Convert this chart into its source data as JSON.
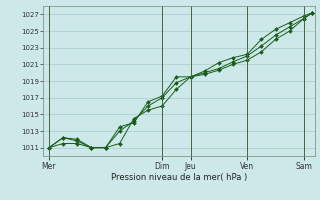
{
  "title": "",
  "xlabel": "Pression niveau de la mer( hPa )",
  "bg_color": "#cce8e8",
  "grid_color": "#aacccc",
  "line_color": "#1a5c1a",
  "marker_color": "#1a5c1a",
  "vline_color": "#446644",
  "ylim": [
    1010.0,
    1028.0
  ],
  "yticks": [
    1011,
    1013,
    1015,
    1017,
    1019,
    1021,
    1023,
    1025,
    1027
  ],
  "day_labels": [
    "Mer",
    "Dim",
    "Jeu",
    "Ven",
    "Sam"
  ],
  "day_positions": [
    0.0,
    4.0,
    5.0,
    7.0,
    9.0
  ],
  "xlim": [
    -0.2,
    9.4
  ],
  "series1_x": [
    0.0,
    0.5,
    1.0,
    1.5,
    2.0,
    2.5,
    3.0,
    3.5,
    4.0,
    4.5,
    5.0,
    5.5,
    6.0,
    6.5,
    7.0,
    7.5,
    8.0,
    8.5,
    9.0,
    9.3
  ],
  "series1_y": [
    1011.0,
    1012.2,
    1011.8,
    1011.0,
    1011.0,
    1013.0,
    1014.2,
    1016.0,
    1017.0,
    1018.8,
    1019.5,
    1020.0,
    1020.5,
    1021.3,
    1022.0,
    1023.2,
    1024.5,
    1025.5,
    1026.5,
    1027.2
  ],
  "series2_x": [
    0.0,
    0.5,
    1.0,
    1.5,
    2.0,
    2.5,
    3.0,
    3.5,
    4.0,
    4.5,
    5.0,
    5.5,
    6.0,
    6.5,
    7.0,
    7.5,
    8.0,
    8.5,
    9.0,
    9.3
  ],
  "series2_y": [
    1011.0,
    1011.5,
    1011.5,
    1011.0,
    1011.0,
    1011.5,
    1014.5,
    1015.5,
    1016.0,
    1018.0,
    1019.5,
    1019.8,
    1020.3,
    1021.0,
    1021.5,
    1022.5,
    1024.0,
    1025.0,
    1026.5,
    1027.2
  ],
  "series3_x": [
    0.0,
    0.5,
    1.0,
    1.5,
    2.0,
    2.5,
    3.0,
    3.5,
    4.0,
    4.5,
    5.0,
    5.5,
    6.0,
    6.5,
    7.0,
    7.5,
    8.0,
    8.5,
    9.0,
    9.3
  ],
  "series3_y": [
    1011.0,
    1012.2,
    1012.0,
    1011.0,
    1011.0,
    1013.5,
    1014.0,
    1016.5,
    1017.2,
    1019.5,
    1019.5,
    1020.2,
    1021.2,
    1021.8,
    1022.2,
    1024.0,
    1025.2,
    1026.0,
    1026.8,
    1027.2
  ]
}
